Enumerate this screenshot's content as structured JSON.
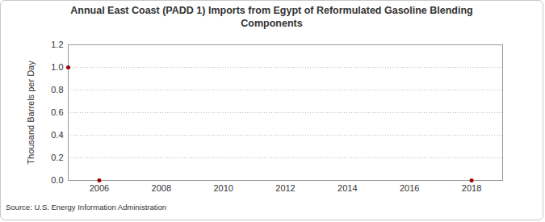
{
  "chart_data": {
    "type": "scatter",
    "title": "Annual East Coast (PADD 1) Imports from Egypt of Reformulated Gasoline Blending Components",
    "y_label": "Thousand Barrels per Day",
    "source": "Source: U.S. Energy Information Administration",
    "x": [
      2005,
      2006,
      2018
    ],
    "values": [
      1.0,
      0,
      0
    ],
    "color": "#990000",
    "marker": "circle",
    "xlim": [
      2005,
      2019
    ],
    "xticks": [
      2006,
      2008,
      2010,
      2012,
      2014,
      2016,
      2018
    ],
    "ylim": [
      0,
      1.2
    ],
    "yticks": [
      {
        "value": 0,
        "label": "0.0"
      },
      0.2,
      0.4,
      0.6,
      0.8,
      {
        "value": 1,
        "label": "1.0"
      },
      1.2
    ],
    "grid": true
  }
}
